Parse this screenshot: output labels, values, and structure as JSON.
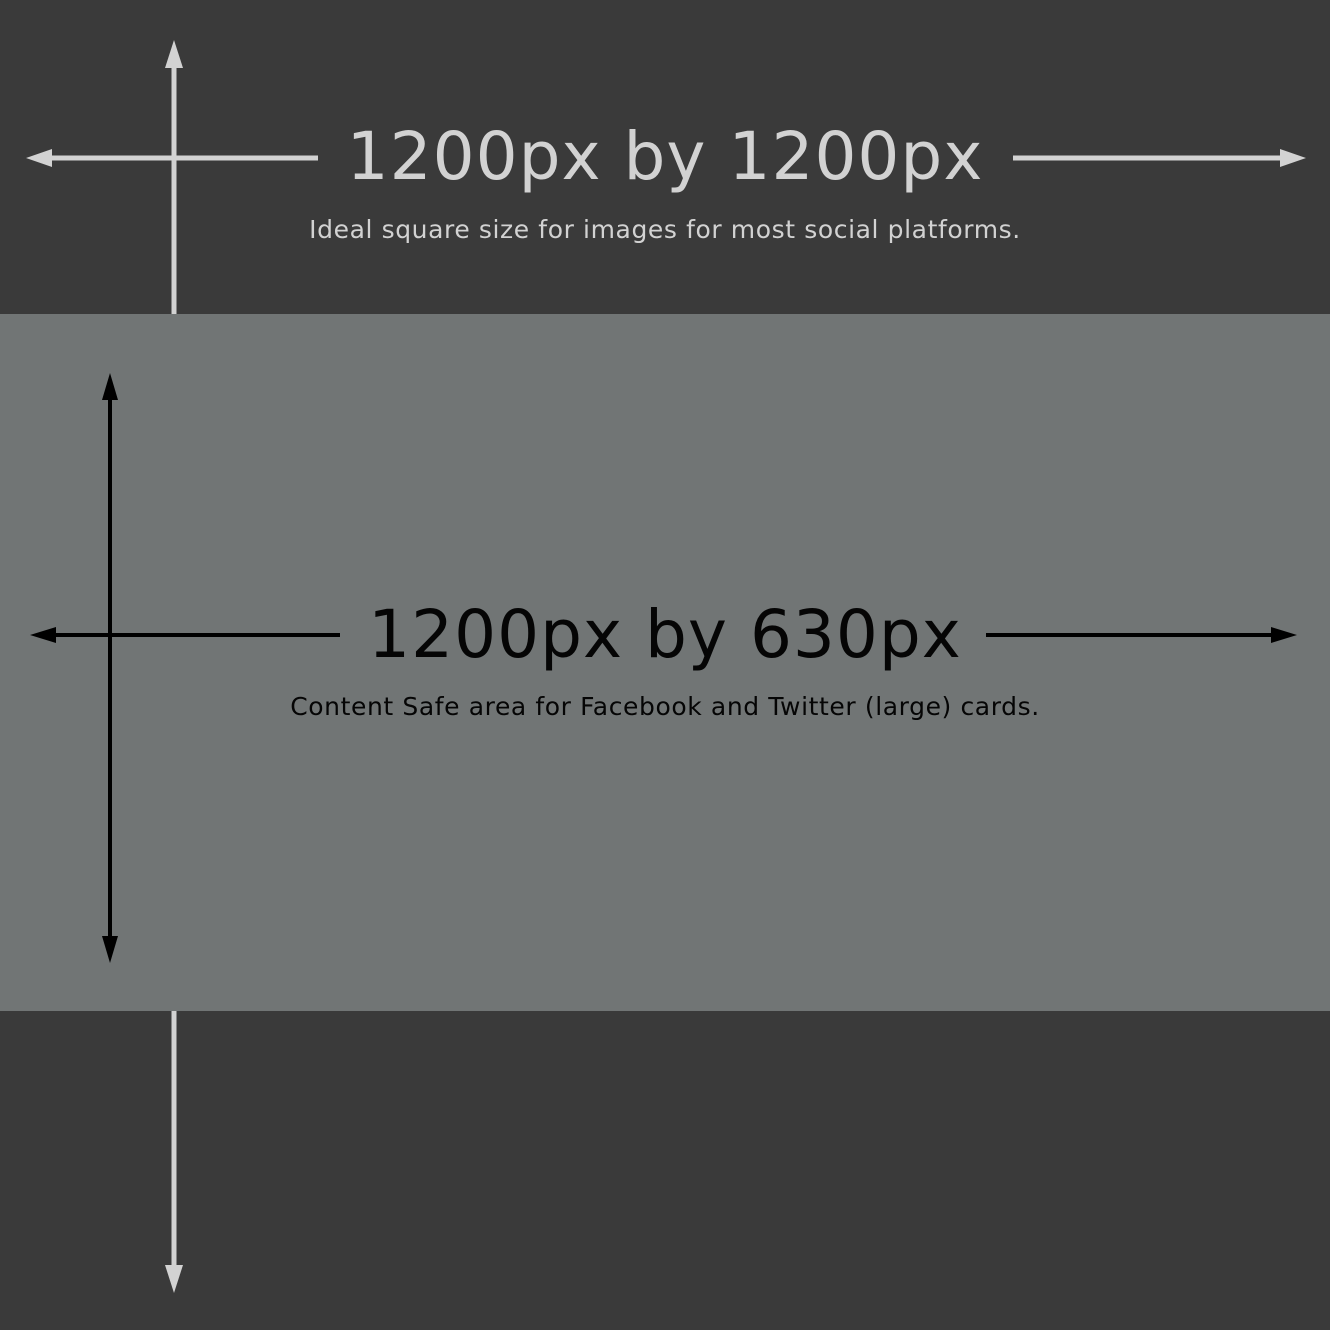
{
  "square": {
    "title": "1200px by 1200px",
    "caption": "Ideal square size for images for most social platforms.",
    "color": "#3a3a3a",
    "text_color": "#d2d2d2"
  },
  "safe_area": {
    "title": "1200px by 630px",
    "caption": "Content Safe area for Facebook and Twitter (large) cards.",
    "color": "#717575",
    "text_color": "#050505"
  }
}
